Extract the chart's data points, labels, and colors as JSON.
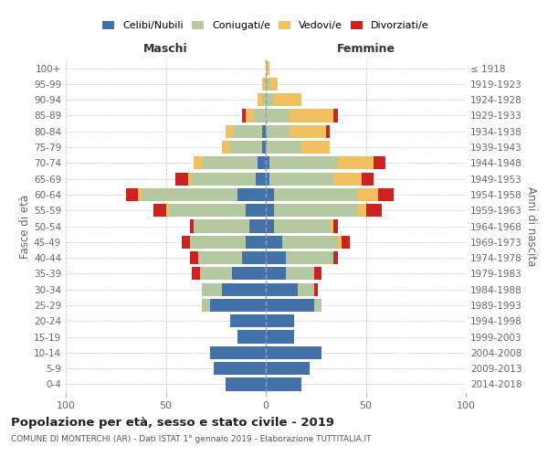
{
  "age_groups": [
    "0-4",
    "5-9",
    "10-14",
    "15-19",
    "20-24",
    "25-29",
    "30-34",
    "35-39",
    "40-44",
    "45-49",
    "50-54",
    "55-59",
    "60-64",
    "65-69",
    "70-74",
    "75-79",
    "80-84",
    "85-89",
    "90-94",
    "95-99",
    "100+"
  ],
  "birth_years": [
    "2014-2018",
    "2009-2013",
    "2004-2008",
    "1999-2003",
    "1994-1998",
    "1989-1993",
    "1984-1988",
    "1979-1983",
    "1974-1978",
    "1969-1973",
    "1964-1968",
    "1959-1963",
    "1954-1958",
    "1949-1953",
    "1944-1948",
    "1939-1943",
    "1934-1938",
    "1929-1933",
    "1924-1928",
    "1919-1923",
    "≤ 1918"
  ],
  "colors": {
    "celibi": "#4472a8",
    "coniugati": "#b5c9a1",
    "vedovi": "#f0c060",
    "divorziati": "#cc2222"
  },
  "maschi": {
    "celibi": [
      20,
      26,
      28,
      14,
      18,
      28,
      22,
      17,
      12,
      10,
      8,
      10,
      14,
      5,
      4,
      2,
      2,
      0,
      0,
      0,
      0
    ],
    "coniugati": [
      0,
      0,
      0,
      0,
      0,
      4,
      10,
      16,
      22,
      28,
      28,
      38,
      48,
      32,
      28,
      16,
      14,
      6,
      2,
      0,
      0
    ],
    "vedovi": [
      0,
      0,
      0,
      0,
      0,
      0,
      0,
      0,
      0,
      0,
      0,
      2,
      2,
      2,
      4,
      4,
      4,
      4,
      2,
      2,
      0
    ],
    "divorziati": [
      0,
      0,
      0,
      0,
      0,
      0,
      0,
      4,
      4,
      4,
      2,
      6,
      6,
      6,
      0,
      0,
      0,
      2,
      0,
      0,
      0
    ]
  },
  "femmine": {
    "nubili": [
      18,
      22,
      28,
      14,
      14,
      24,
      16,
      10,
      10,
      8,
      4,
      4,
      4,
      2,
      2,
      0,
      0,
      0,
      0,
      0,
      0
    ],
    "coniugate": [
      0,
      0,
      0,
      0,
      0,
      4,
      8,
      14,
      24,
      28,
      28,
      42,
      42,
      32,
      34,
      18,
      12,
      12,
      4,
      2,
      0
    ],
    "vedove": [
      0,
      0,
      0,
      0,
      0,
      0,
      0,
      0,
      0,
      2,
      2,
      4,
      10,
      14,
      18,
      14,
      18,
      22,
      14,
      4,
      2
    ],
    "divorziate": [
      0,
      0,
      0,
      0,
      0,
      0,
      2,
      4,
      2,
      4,
      2,
      8,
      8,
      6,
      6,
      0,
      2,
      2,
      0,
      0,
      0
    ]
  },
  "title": "Popolazione per età, sesso e stato civile - 2019",
  "subtitle": "COMUNE DI MONTERCHI (AR) - Dati ISTAT 1° gennaio 2019 - Elaborazione TUTTITALIA.IT",
  "xlabel_left": "Maschi",
  "xlabel_right": "Femmine",
  "ylabel_left": "Fasce di età",
  "ylabel_right": "Anni di nascita",
  "xlim": 100,
  "legend_labels": [
    "Celibi/Nubili",
    "Coniugati/e",
    "Vedovi/e",
    "Divorziati/e"
  ],
  "background_color": "#ffffff",
  "grid_color": "#cccccc",
  "bar_height": 0.82
}
